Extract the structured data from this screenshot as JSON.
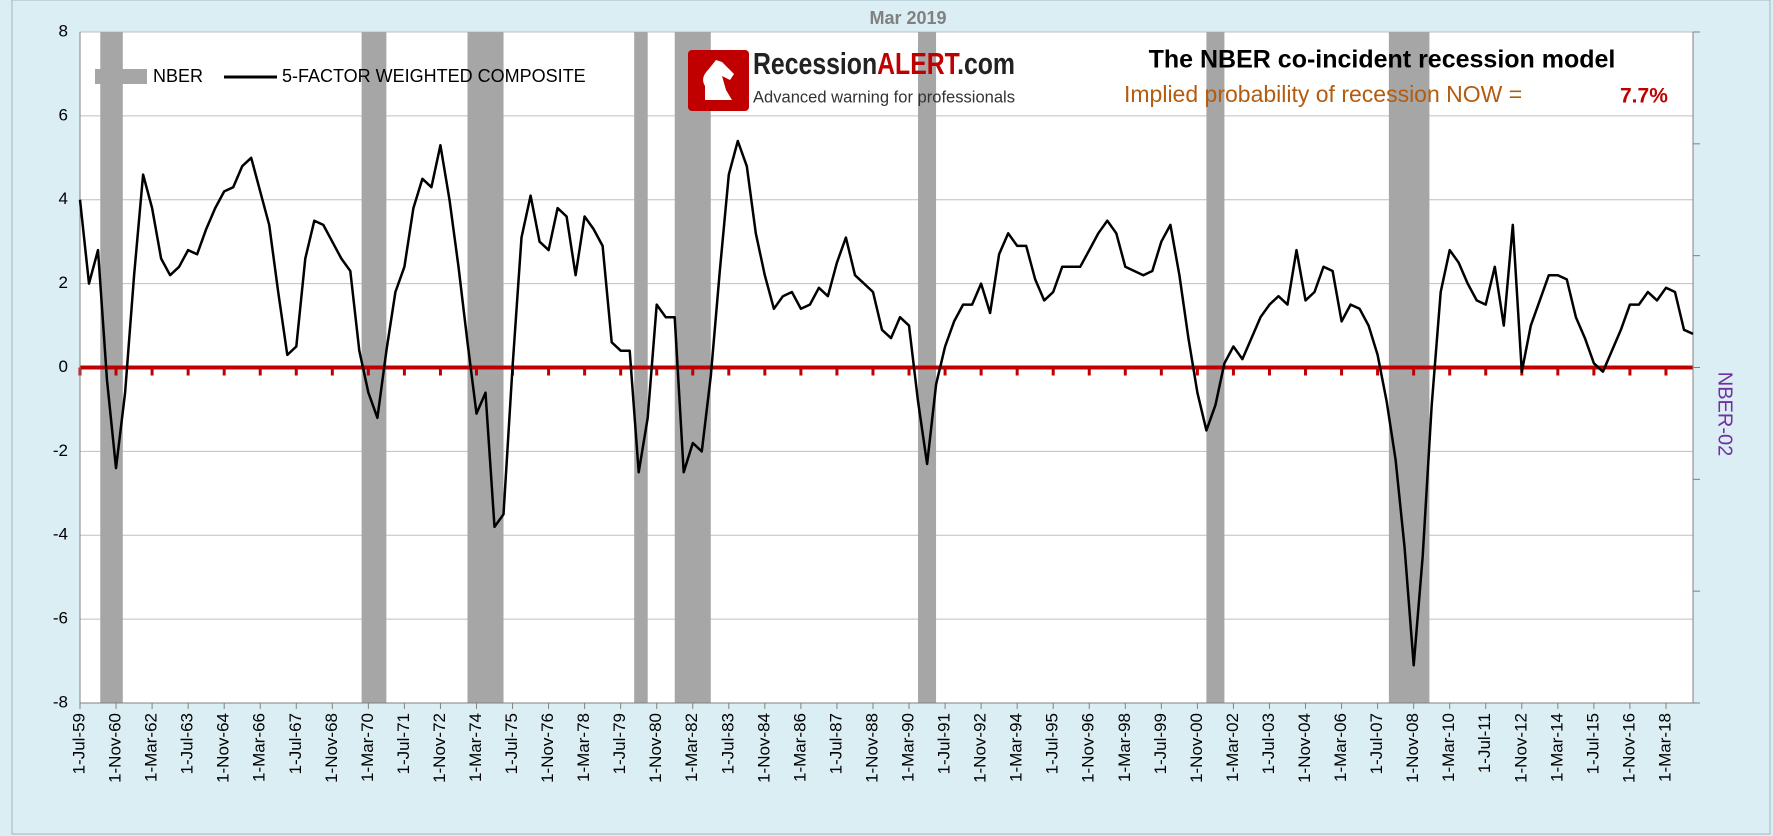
{
  "chart_data": {
    "type": "line",
    "title": "Mar 2019",
    "heading": "The NBER co-incident recession model",
    "probability_label": "Implied probability of recession NOW =",
    "probability_value": "7.7%",
    "logo": {
      "name": "Recession",
      "highlight": "ALERT",
      "suffix": ".com",
      "tagline": "Advanced warning for professionals"
    },
    "y2_label": "NBER-02",
    "ylim": [
      -8,
      8
    ],
    "yticks": [
      -8,
      -6,
      -4,
      -2,
      0,
      2,
      4,
      6,
      8
    ],
    "y2lim": [
      -5,
      1
    ],
    "y2ticks": [
      -5,
      -4,
      -3,
      -2,
      -1,
      0,
      1
    ],
    "xlim": [
      "1-Jul-59",
      "1-Mar-19"
    ],
    "xticks": [
      "1-Jul-59",
      "1-Nov-60",
      "1-Mar-62",
      "1-Jul-63",
      "1-Nov-64",
      "1-Mar-66",
      "1-Jul-67",
      "1-Nov-68",
      "1-Mar-70",
      "1-Jul-71",
      "1-Nov-72",
      "1-Mar-74",
      "1-Jul-75",
      "1-Nov-76",
      "1-Mar-78",
      "1-Jul-79",
      "1-Nov-80",
      "1-Mar-82",
      "1-Jul-83",
      "1-Nov-84",
      "1-Mar-86",
      "1-Jul-87",
      "1-Nov-88",
      "1-Mar-90",
      "1-Jul-91",
      "1-Nov-92",
      "1-Mar-94",
      "1-Jul-95",
      "1-Nov-96",
      "1-Mar-98",
      "1-Jul-99",
      "1-Nov-00",
      "1-Mar-02",
      "1-Jul-03",
      "1-Nov-04",
      "1-Mar-06",
      "1-Jul-07",
      "1-Nov-08",
      "1-Mar-10",
      "1-Jul-11",
      "1-Nov-12",
      "1-Mar-14",
      "1-Jul-15",
      "1-Nov-16",
      "1-Mar-18"
    ],
    "grid": true,
    "reference_line": {
      "value": 0,
      "color": "#c00000"
    },
    "x": [
      "1-Jul-59",
      "1-Nov-59",
      "1-Mar-60",
      "1-Jul-60",
      "1-Nov-60",
      "1-Mar-61",
      "1-Jul-61",
      "1-Nov-61",
      "1-Mar-62",
      "1-Jul-62",
      "1-Nov-62",
      "1-Mar-63",
      "1-Jul-63",
      "1-Nov-63",
      "1-Mar-64",
      "1-Jul-64",
      "1-Nov-64",
      "1-Mar-65",
      "1-Jul-65",
      "1-Nov-65",
      "1-Mar-66",
      "1-Jul-66",
      "1-Nov-66",
      "1-Mar-67",
      "1-Jul-67",
      "1-Nov-67",
      "1-Mar-68",
      "1-Jul-68",
      "1-Nov-68",
      "1-Mar-69",
      "1-Jul-69",
      "1-Nov-69",
      "1-Mar-70",
      "1-Jul-70",
      "1-Nov-70",
      "1-Mar-71",
      "1-Jul-71",
      "1-Nov-71",
      "1-Mar-72",
      "1-Jul-72",
      "1-Nov-72",
      "1-Mar-73",
      "1-Jul-73",
      "1-Nov-73",
      "1-Mar-74",
      "1-Jul-74",
      "1-Nov-74",
      "1-Mar-75",
      "1-Jul-75",
      "1-Nov-75",
      "1-Mar-76",
      "1-Jul-76",
      "1-Nov-76",
      "1-Mar-77",
      "1-Jul-77",
      "1-Nov-77",
      "1-Mar-78",
      "1-Jul-78",
      "1-Nov-78",
      "1-Mar-79",
      "1-Jul-79",
      "1-Nov-79",
      "1-Mar-80",
      "1-Jul-80",
      "1-Nov-80",
      "1-Mar-81",
      "1-Jul-81",
      "1-Nov-81",
      "1-Mar-82",
      "1-Jul-82",
      "1-Nov-82",
      "1-Mar-83",
      "1-Jul-83",
      "1-Nov-83",
      "1-Mar-84",
      "1-Jul-84",
      "1-Nov-84",
      "1-Mar-85",
      "1-Jul-85",
      "1-Nov-85",
      "1-Mar-86",
      "1-Jul-86",
      "1-Nov-86",
      "1-Mar-87",
      "1-Jul-87",
      "1-Nov-87",
      "1-Mar-88",
      "1-Jul-88",
      "1-Nov-88",
      "1-Mar-89",
      "1-Jul-89",
      "1-Nov-89",
      "1-Mar-90",
      "1-Jul-90",
      "1-Nov-90",
      "1-Mar-91",
      "1-Jul-91",
      "1-Nov-91",
      "1-Mar-92",
      "1-Jul-92",
      "1-Nov-92",
      "1-Mar-93",
      "1-Jul-93",
      "1-Nov-93",
      "1-Mar-94",
      "1-Jul-94",
      "1-Nov-94",
      "1-Mar-95",
      "1-Jul-95",
      "1-Nov-95",
      "1-Mar-96",
      "1-Jul-96",
      "1-Nov-96",
      "1-Mar-97",
      "1-Jul-97",
      "1-Nov-97",
      "1-Mar-98",
      "1-Jul-98",
      "1-Nov-98",
      "1-Mar-99",
      "1-Jul-99",
      "1-Nov-99",
      "1-Mar-00",
      "1-Jul-00",
      "1-Nov-00",
      "1-Mar-01",
      "1-Jul-01",
      "1-Nov-01",
      "1-Mar-02",
      "1-Jul-02",
      "1-Nov-02",
      "1-Mar-03",
      "1-Jul-03",
      "1-Nov-03",
      "1-Mar-04",
      "1-Jul-04",
      "1-Nov-04",
      "1-Mar-05",
      "1-Jul-05",
      "1-Nov-05",
      "1-Mar-06",
      "1-Jul-06",
      "1-Nov-06",
      "1-Mar-07",
      "1-Jul-07",
      "1-Nov-07",
      "1-Mar-08",
      "1-Jul-08",
      "1-Nov-08",
      "1-Mar-09",
      "1-Jul-09",
      "1-Nov-09",
      "1-Mar-10",
      "1-Jul-10",
      "1-Nov-10",
      "1-Mar-11",
      "1-Jul-11",
      "1-Nov-11",
      "1-Mar-12",
      "1-Jul-12",
      "1-Nov-12",
      "1-Mar-13",
      "1-Jul-13",
      "1-Nov-13",
      "1-Mar-14",
      "1-Jul-14",
      "1-Nov-14",
      "1-Mar-15",
      "1-Jul-15",
      "1-Nov-15",
      "1-Mar-16",
      "1-Jul-16",
      "1-Nov-16",
      "1-Mar-17",
      "1-Jul-17",
      "1-Nov-17",
      "1-Mar-18",
      "1-Jul-18",
      "1-Nov-18",
      "1-Mar-19"
    ],
    "series": [
      {
        "name": "NBER",
        "color": "#a6a6a6",
        "axis": "y2",
        "value": 1,
        "periods": [
          [
            "1-Apr-60",
            "1-Feb-61"
          ],
          [
            "1-Dec-69",
            "1-Nov-70"
          ],
          [
            "1-Nov-73",
            "1-Mar-75"
          ],
          [
            "1-Jan-80",
            "1-Jul-80"
          ],
          [
            "1-Jul-81",
            "1-Nov-82"
          ],
          [
            "1-Jul-90",
            "1-Mar-91"
          ],
          [
            "1-Mar-01",
            "1-Nov-01"
          ],
          [
            "1-Dec-07",
            "1-Jun-09"
          ]
        ]
      },
      {
        "name": "5-FACTOR WEIGHTED COMPOSITE",
        "color": "#000000",
        "values": [
          4.0,
          2.0,
          2.8,
          -0.3,
          -2.4,
          -0.6,
          2.2,
          4.6,
          3.8,
          2.6,
          2.2,
          2.4,
          2.8,
          2.7,
          3.3,
          3.8,
          4.2,
          4.3,
          4.8,
          5.0,
          4.2,
          3.4,
          1.8,
          0.3,
          0.5,
          2.6,
          3.5,
          3.4,
          3.0,
          2.6,
          2.3,
          0.4,
          -0.6,
          -1.2,
          0.4,
          1.8,
          2.4,
          3.8,
          4.5,
          4.3,
          5.3,
          4.0,
          2.4,
          0.6,
          -1.1,
          -0.6,
          -3.8,
          -3.5,
          0.0,
          3.1,
          4.1,
          3.0,
          2.8,
          3.8,
          3.6,
          2.2,
          3.6,
          3.3,
          2.9,
          0.6,
          0.4,
          0.4,
          -2.5,
          -1.2,
          1.5,
          1.2,
          1.2,
          -2.5,
          -1.8,
          -2.0,
          -0.2,
          2.3,
          4.6,
          5.4,
          4.8,
          3.2,
          2.2,
          1.4,
          1.7,
          1.8,
          1.4,
          1.5,
          1.9,
          1.7,
          2.5,
          3.1,
          2.2,
          2.0,
          1.8,
          0.9,
          0.7,
          1.2,
          1.0,
          -0.8,
          -2.3,
          -0.4,
          0.5,
          1.1,
          1.5,
          1.5,
          2.0,
          1.3,
          2.7,
          3.2,
          2.9,
          2.9,
          2.1,
          1.6,
          1.8,
          2.4,
          2.4,
          2.4,
          2.8,
          3.2,
          3.5,
          3.2,
          2.4,
          2.3,
          2.2,
          2.3,
          3.0,
          3.4,
          2.2,
          0.7,
          -0.6,
          -1.5,
          -0.9,
          0.1,
          0.5,
          0.2,
          0.7,
          1.2,
          1.5,
          1.7,
          1.5,
          2.8,
          1.6,
          1.8,
          2.4,
          2.3,
          1.1,
          1.5,
          1.4,
          1.0,
          0.3,
          -0.8,
          -2.2,
          -4.3,
          -7.1,
          -4.5,
          -0.9,
          1.8,
          2.8,
          2.5,
          2.0,
          1.6,
          1.5,
          2.4,
          1.0,
          3.4,
          -0.1,
          1.0,
          1.6,
          2.2,
          2.2,
          2.1,
          1.2,
          0.7,
          0.1,
          -0.1,
          0.4,
          0.9,
          1.5,
          1.5,
          1.8,
          1.6,
          1.9,
          1.8,
          0.9,
          0.8
        ]
      }
    ]
  }
}
